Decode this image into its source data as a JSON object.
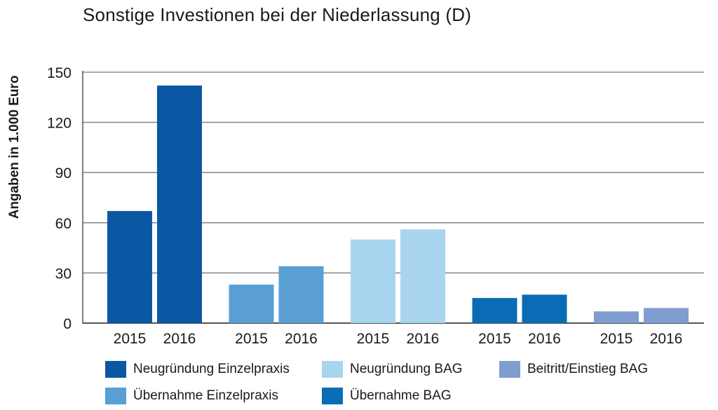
{
  "chart_data": {
    "type": "bar",
    "title": "Sonstige Investionen bei der Niederlassung (D)",
    "ylabel": "Angaben in 1.000 Euro",
    "xlabel": "",
    "ylim": [
      0,
      150
    ],
    "yticks": [
      0,
      30,
      60,
      90,
      120,
      150
    ],
    "grid": true,
    "legend_position": "bottom",
    "categories": [
      "2015",
      "2016"
    ],
    "series": [
      {
        "name": "Neugründung Einzelpraxis",
        "color": "#0b57a4",
        "values": [
          67,
          142
        ]
      },
      {
        "name": "Übernahme Einzelpraxis",
        "color": "#5a9fd4",
        "values": [
          23,
          34
        ]
      },
      {
        "name": "Neugründung BAG",
        "color": "#a9d4f0",
        "values": [
          50,
          56
        ]
      },
      {
        "name": "Übernahme BAG",
        "color": "#0a6cb5",
        "values": [
          15,
          17
        ]
      },
      {
        "name": "Beitritt/Einstieg BAG",
        "color": "#7f9dcf",
        "values": [
          7,
          9
        ]
      }
    ]
  }
}
